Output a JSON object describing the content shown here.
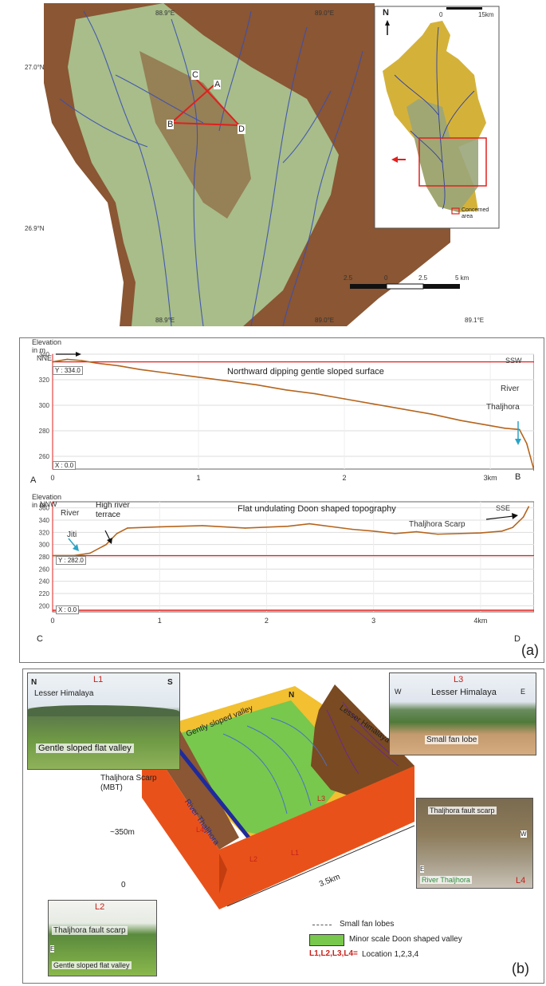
{
  "map": {
    "lon_top": [
      "88.9°E",
      "89.0°E"
    ],
    "lon_bottom": [
      "88.9°E",
      "89.0°E",
      "89.1°E"
    ],
    "lat": [
      "27.0°N",
      "26.9°N"
    ],
    "points": [
      "C",
      "A",
      "B",
      "D"
    ],
    "scale_labels": [
      "2.5",
      "0",
      "2.5",
      "5 km"
    ],
    "inset": {
      "north": "N",
      "scale_labels": [
        "0",
        "15km"
      ],
      "legend": "Concerned area"
    }
  },
  "profile_ab": {
    "ylabel": "Elevation in m",
    "left_dir": "NNE",
    "right_dir": "SSW",
    "ref_label": "Y : 334.0",
    "x_ref_label": "X : 0.0",
    "title": "Northward dipping gentle sloped surface",
    "river_label": "River",
    "river_name": "Thaljhora",
    "start": "A",
    "end": "B",
    "x_ticks": [
      "0",
      "1",
      "2",
      "3km"
    ],
    "y_ticks": [
      "340",
      "320",
      "300",
      "280",
      "260"
    ]
  },
  "profile_cd": {
    "ylabel": "Elevation in m",
    "left_dir": "NNW",
    "right_dir": "SSE",
    "ref_label": "Y : 282.0",
    "x_ref_label": "X : 0.0",
    "title": "Flat undulating Doon shaped topography",
    "river_label": "River",
    "river_name": "Jiti",
    "terrace_label": "High river terrace",
    "scarp_label": "Thaljhora Scarp",
    "start": "C",
    "end": "D",
    "x_ticks": [
      "0",
      "1",
      "2",
      "3",
      "4km"
    ],
    "y_ticks": [
      "360",
      "340",
      "320",
      "300",
      "280",
      "260",
      "240",
      "220",
      "200"
    ]
  },
  "panel_a_label": "(a)",
  "panel_b_label": "(b)",
  "chart_data": [
    {
      "type": "line",
      "title": "Northward dipping gentle sloped surface",
      "xlabel": "",
      "ylabel": "Elevation in m",
      "xlim": [
        0,
        3.3
      ],
      "ylim": [
        250,
        340
      ],
      "x": [
        0,
        0.1,
        0.2,
        0.3,
        0.45,
        0.6,
        0.8,
        1.0,
        1.2,
        1.4,
        1.6,
        1.8,
        2.0,
        2.2,
        2.4,
        2.6,
        2.8,
        3.0,
        3.1,
        3.2,
        3.25,
        3.3
      ],
      "y": [
        334,
        336,
        335,
        333,
        331,
        328,
        325,
        322,
        319,
        316,
        312,
        309,
        305,
        301,
        297,
        293,
        288,
        284,
        282,
        281,
        270,
        249
      ],
      "ref_y": 334.0
    },
    {
      "type": "line",
      "title": "Flat undulating Doon shaped topography",
      "xlabel": "",
      "ylabel": "Elevation in m",
      "xlim": [
        0,
        4.5
      ],
      "ylim": [
        190,
        370
      ],
      "x": [
        0,
        0.2,
        0.35,
        0.5,
        0.6,
        0.7,
        1.0,
        1.4,
        1.8,
        2.2,
        2.4,
        2.8,
        3.0,
        3.2,
        3.4,
        3.6,
        4.0,
        4.2,
        4.3,
        4.4,
        4.45
      ],
      "y": [
        282,
        282,
        286,
        300,
        318,
        327,
        329,
        331,
        327,
        330,
        334,
        325,
        322,
        318,
        321,
        317,
        319,
        322,
        328,
        345,
        362
      ],
      "ref_y": 282.0
    }
  ],
  "block": {
    "photo_l1": {
      "loc": "L1",
      "left": "N",
      "right": "S",
      "title": "Lesser Himalaya",
      "caption": "Gentle sloped flat valley"
    },
    "photo_l2": {
      "loc": "L2",
      "caption_top": "Thaljhora fault scarp",
      "caption_bottom": "Gentle sloped flat valley",
      "e_label": "E"
    },
    "photo_l3": {
      "loc": "L3",
      "left": "W",
      "right": "E",
      "title": "Lesser Himalaya",
      "caption": "Small fan lobe"
    },
    "photo_l4": {
      "loc": "L4",
      "caption_top": "Thaljhora fault scarp",
      "river": "River Thaljhora",
      "e_label": "E",
      "w_label": "W"
    },
    "scarp_label": "Thaljhora Scarp (MBT)",
    "elev_top": "~350m",
    "elev_bottom": "0",
    "valley_label": "Gently sloped valley",
    "river_label": "River Thaljhora",
    "lesser_label": "Lesser Himalaya",
    "north": "N",
    "loc_labels": [
      "L1",
      "L2",
      "L3",
      "L4"
    ],
    "width_label": "3.5km",
    "legend": {
      "fan": "Small fan lobes",
      "doon": "Minor scale Doon shaped valley",
      "loc_key": "L1,L2,L3,L4=",
      "loc_value": "Location 1,2,3,4"
    }
  }
}
